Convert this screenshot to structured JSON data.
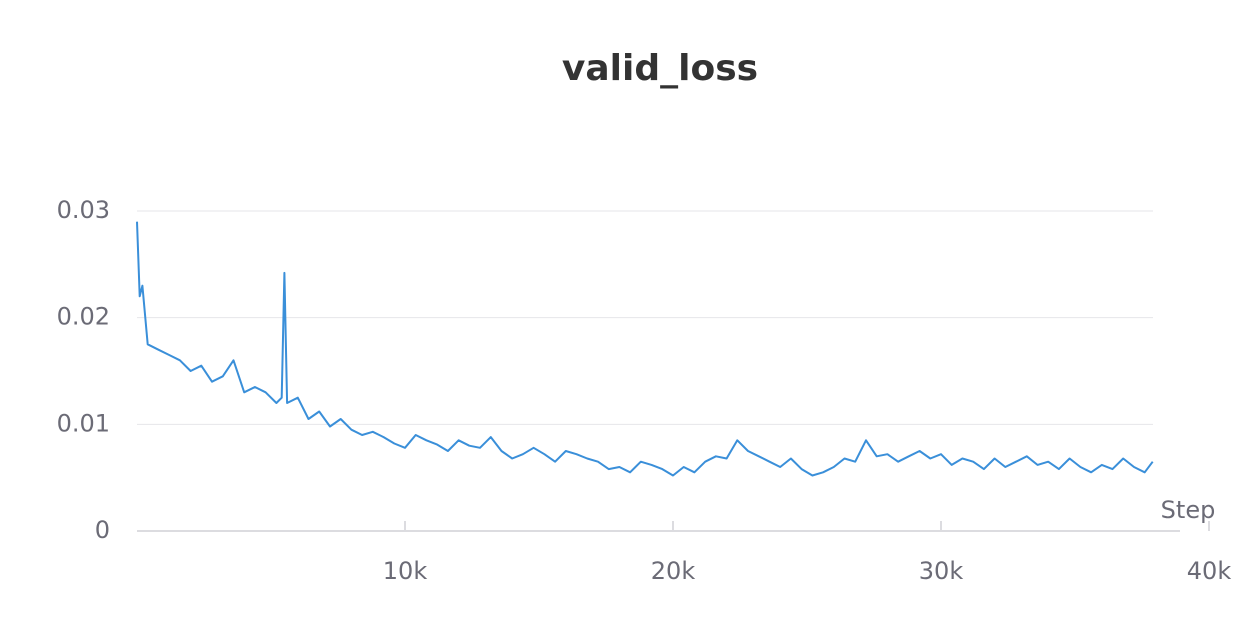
{
  "chart_data": {
    "type": "line",
    "title": "valid_loss",
    "x_label": "Step",
    "x": [
      0,
      100,
      200,
      400,
      800,
      1200,
      1600,
      2000,
      2400,
      2800,
      3200,
      3600,
      4000,
      4400,
      4800,
      5200,
      5400,
      5500,
      5600,
      6000,
      6400,
      6800,
      7200,
      7600,
      8000,
      8400,
      8800,
      9200,
      9600,
      10000,
      10400,
      10800,
      11200,
      11600,
      12000,
      12400,
      12800,
      13200,
      13600,
      14000,
      14400,
      14800,
      15200,
      15600,
      16000,
      16400,
      16800,
      17200,
      17600,
      18000,
      18400,
      18800,
      19200,
      19600,
      20000,
      20400,
      20800,
      21200,
      21600,
      22000,
      22400,
      22800,
      23200,
      23600,
      24000,
      24400,
      24800,
      25200,
      25600,
      26000,
      26400,
      26800,
      27200,
      27600,
      28000,
      28400,
      28800,
      29200,
      29600,
      30000,
      30400,
      30800,
      31200,
      31600,
      32000,
      32400,
      32800,
      33200,
      33600,
      34000,
      34400,
      34800,
      35200,
      35600,
      36000,
      36400,
      36800,
      37200,
      37600,
      37900
    ],
    "values": [
      0.029,
      0.022,
      0.023,
      0.0175,
      0.017,
      0.0165,
      0.016,
      0.015,
      0.0155,
      0.014,
      0.0145,
      0.016,
      0.013,
      0.0135,
      0.013,
      0.012,
      0.0125,
      0.0242,
      0.012,
      0.0125,
      0.0105,
      0.0112,
      0.0098,
      0.0105,
      0.0095,
      0.009,
      0.0093,
      0.0088,
      0.0082,
      0.0078,
      0.009,
      0.0085,
      0.0081,
      0.0075,
      0.0085,
      0.008,
      0.0078,
      0.0088,
      0.0075,
      0.0068,
      0.0072,
      0.0078,
      0.0072,
      0.0065,
      0.0075,
      0.0072,
      0.0068,
      0.0065,
      0.0058,
      0.006,
      0.0055,
      0.0065,
      0.0062,
      0.0058,
      0.0052,
      0.006,
      0.0055,
      0.0065,
      0.007,
      0.0068,
      0.0085,
      0.0075,
      0.007,
      0.0065,
      0.006,
      0.0068,
      0.0058,
      0.0052,
      0.0055,
      0.006,
      0.0068,
      0.0065,
      0.0085,
      0.007,
      0.0072,
      0.0065,
      0.007,
      0.0075,
      0.0068,
      0.0072,
      0.0062,
      0.0068,
      0.0065,
      0.0058,
      0.0068,
      0.006,
      0.0065,
      0.007,
      0.0062,
      0.0065,
      0.0058,
      0.0068,
      0.006,
      0.0055,
      0.0062,
      0.0058,
      0.0068,
      0.006,
      0.0055,
      0.0065
    ],
    "color": "#3a8fd9",
    "xlim": [
      0,
      40000
    ],
    "xticks": [
      {
        "value": 10000,
        "label": "10k"
      },
      {
        "value": 20000,
        "label": "20k"
      },
      {
        "value": 30000,
        "label": "30k"
      },
      {
        "value": 40000,
        "label": "40k"
      }
    ],
    "ylim": [
      0,
      0.03
    ],
    "yticks": [
      0,
      0.01,
      0.02,
      0.03
    ],
    "grid": true
  }
}
